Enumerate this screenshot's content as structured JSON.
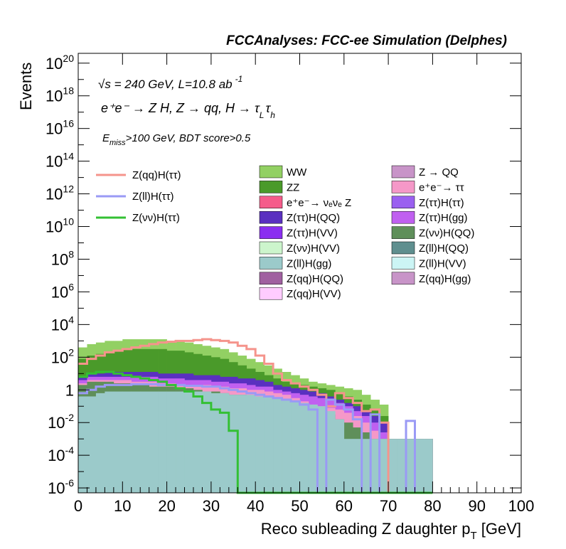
{
  "title": "FCCAnalyses: FCC-ee Simulation (Delphes)",
  "annotations": {
    "sqrt_s": "s = 240 GeV, L=10.8 ab",
    "sqrt_symbol": "√",
    "lumi_exp": "-1",
    "process_line": "e⁺e⁻ → Z H, Z → qq, H → τ",
    "process_tauL": "L",
    "process_tauH": "h",
    "cut_E": "E",
    "cut_sub": "miss",
    "cut_rest": ">100 GeV, BDT score>0.5"
  },
  "colors": {
    "frame": "#000000",
    "signal_qq": "#f5948c",
    "signal_ll": "#9a9af5",
    "signal_vv": "#33c033"
  },
  "chart_data": {
    "type": "histogram",
    "xlabel": "Reco subleading Z daughter p",
    "xlabel_sub": "T",
    "xlabel_unit": " [GeV]",
    "ylabel": "Events",
    "xlim": [
      0,
      100
    ],
    "ylim_log10": [
      -6.3,
      20.6
    ],
    "y_scale": "log",
    "x_ticks": [
      "0",
      "10",
      "20",
      "30",
      "40",
      "50",
      "60",
      "70",
      "80",
      "90",
      "100"
    ],
    "y_ticks": [
      {
        "base": "10",
        "exp": "20",
        "v": 20
      },
      {
        "base": "10",
        "exp": "18",
        "v": 18
      },
      {
        "base": "10",
        "exp": "16",
        "v": 16
      },
      {
        "base": "10",
        "exp": "14",
        "v": 14
      },
      {
        "base": "10",
        "exp": "12",
        "v": 12
      },
      {
        "base": "10",
        "exp": "10",
        "v": 10
      },
      {
        "base": "10",
        "exp": "8",
        "v": 8
      },
      {
        "base": "10",
        "exp": "6",
        "v": 6
      },
      {
        "base": "10",
        "exp": "4",
        "v": 4
      },
      {
        "base": "10",
        "exp": "2",
        "v": 2
      },
      {
        "base": "1",
        "exp": "",
        "v": 0
      },
      {
        "base": "10",
        "exp": "-2",
        "v": -2
      },
      {
        "base": "10",
        "exp": "-4",
        "v": -4
      },
      {
        "base": "10",
        "exp": "-6",
        "v": -6
      }
    ],
    "bin_width": 2,
    "stack_layers": [
      {
        "name": "Z(ll)H(gg)",
        "color": "#9bcaca",
        "log10": [
          -0.4,
          -0.4,
          -0.2,
          -0.1,
          -0.1,
          -0.1,
          -0.1,
          -0.1,
          -0.1,
          -0.1,
          -0.1,
          -0.1,
          -0.1,
          -0.1,
          -0.1,
          -0.2,
          -0.2,
          -0.3,
          -0.3,
          -0.3,
          -0.4,
          -0.4,
          -0.5,
          -0.6,
          -0.7,
          -0.8,
          -0.9,
          -1.0,
          -1.3,
          -1.8,
          -3.0,
          -3.0,
          -3.0,
          -3.0,
          -3.0,
          -3.0,
          -3.0,
          -3.0,
          -3.0,
          -3.0
        ]
      },
      {
        "name": "Z(νν)H(QQ)",
        "color": "#5f8f5a",
        "log10": [
          0.3,
          0.5,
          0.5,
          0.5,
          0.4,
          0.4,
          0.3,
          0.3,
          0.2,
          0.2,
          0.2,
          0.1,
          0.1,
          0.0,
          -0.1,
          -0.1,
          -0.2,
          -0.3,
          -0.3,
          -0.4,
          -0.5,
          -0.6,
          -0.7,
          -0.8,
          -0.9,
          -1.0,
          -1.2,
          -1.3,
          -1.5,
          -1.8,
          -2.0,
          -2.3,
          -2.6,
          -3.0,
          -3.0,
          -3.0,
          -3.0,
          -3.0,
          -3.0,
          -3.0
        ]
      },
      {
        "name": "e⁺e⁻→τ τ",
        "color": "#f598c8",
        "log10": [
          0.4,
          0.6,
          0.6,
          0.6,
          0.6,
          0.6,
          0.5,
          0.5,
          0.5,
          0.4,
          0.4,
          0.3,
          0.3,
          0.3,
          0.3,
          0.2,
          0.2,
          0.1,
          0.1,
          0.0,
          0.0,
          -0.1,
          -0.2,
          -0.3,
          -0.5,
          -0.7,
          -0.9,
          -1.0,
          -1.1,
          -1.2,
          -1.4,
          -1.6,
          -2.0,
          -2.5,
          -3.0,
          -3.0,
          -3.0,
          -3.0,
          -3.0,
          -3.0
        ]
      },
      {
        "name": "Z(ττ)H(gg)",
        "color": "#c060f0",
        "log10": [
          0.6,
          0.8,
          0.8,
          0.8,
          0.8,
          0.8,
          0.8,
          0.8,
          0.8,
          0.7,
          0.7,
          0.7,
          0.6,
          0.6,
          0.6,
          0.5,
          0.5,
          0.4,
          0.4,
          0.3,
          0.2,
          0.2,
          0.0,
          -0.1,
          -0.2,
          -0.3,
          -0.4,
          -0.5,
          -0.6,
          -0.8,
          -1.0,
          -1.3,
          -1.6,
          -2.0,
          -2.6,
          -3.0,
          -3.0,
          -3.0,
          -3.0,
          -3.0
        ]
      },
      {
        "name": "Z(ττ)H(QQ)",
        "color": "#5a30c0",
        "log10": [
          0.8,
          1.0,
          1.0,
          1.1,
          1.1,
          1.1,
          1.1,
          1.1,
          1.1,
          1.0,
          1.0,
          1.0,
          1.0,
          0.9,
          0.9,
          0.9,
          0.8,
          0.8,
          0.7,
          0.7,
          0.6,
          0.5,
          0.3,
          0.2,
          0.1,
          0.0,
          -0.1,
          -0.2,
          -0.4,
          -0.6,
          -0.8,
          -1.0,
          -1.3,
          -1.6,
          -2.0,
          -3.0,
          -3.0,
          -3.0,
          -3.0,
          -3.0
        ]
      },
      {
        "name": "ZZ",
        "color": "#4a9a2a",
        "log10": [
          1.9,
          2.1,
          2.2,
          2.3,
          2.4,
          2.5,
          2.5,
          2.5,
          2.5,
          2.5,
          2.4,
          2.4,
          2.3,
          2.2,
          2.1,
          2.0,
          1.9,
          1.7,
          1.5,
          1.3,
          1.1,
          0.9,
          0.7,
          0.5,
          0.4,
          0.3,
          0.2,
          0.1,
          0.0,
          -0.2,
          -0.4,
          -0.6,
          -0.9,
          -1.2,
          -1.6,
          -3.0,
          -3.0,
          -3.0,
          -3.0,
          -3.0
        ]
      },
      {
        "name": "WW",
        "color": "#92d063",
        "log10": [
          2.6,
          2.8,
          2.9,
          3.0,
          3.0,
          3.1,
          3.1,
          3.1,
          3.1,
          3.1,
          3.0,
          3.0,
          2.9,
          2.8,
          2.7,
          2.6,
          2.5,
          2.3,
          2.1,
          1.9,
          1.7,
          1.5,
          1.3,
          1.1,
          0.9,
          0.7,
          0.5,
          0.4,
          0.3,
          0.2,
          0.1,
          0.0,
          -0.3,
          -0.6,
          -0.9,
          -3.0,
          -3.0,
          -3.0,
          -3.0,
          -3.0
        ]
      }
    ],
    "signals": [
      {
        "name": "Z(qq)H(ττ)",
        "color": "#f5948c",
        "log10": [
          1.6,
          1.9,
          2.1,
          2.3,
          2.4,
          2.5,
          2.6,
          2.7,
          2.8,
          2.9,
          2.95,
          3.0,
          3.0,
          3.05,
          3.1,
          3.05,
          3.0,
          2.9,
          2.7,
          2.5,
          2.1,
          1.6,
          1.0,
          0.6,
          0.4,
          0.2,
          0.0,
          -0.3,
          -1.0,
          -0.2,
          -0.5,
          -0.8,
          -1.3,
          -1.2,
          -2.0,
          -6.3,
          -6.3,
          -6.3,
          -6.3,
          -6.3
        ]
      },
      {
        "name": "Z(ll)H(ττ)",
        "color": "#9a9af5",
        "log10": [
          -0.2,
          0.0,
          0.2,
          0.3,
          0.3,
          0.3,
          0.35,
          0.35,
          0.35,
          0.3,
          0.3,
          0.3,
          0.25,
          0.25,
          0.2,
          0.2,
          0.1,
          0.0,
          -0.1,
          -0.2,
          -0.3,
          -0.4,
          -0.5,
          -0.6,
          -0.7,
          -0.9,
          -1.2,
          -6.3,
          -0.6,
          -0.9,
          -1.2,
          -1.8,
          -6.3,
          -1.5,
          -6.3,
          -6.3,
          -6.3,
          -1.9,
          -6.3,
          -6.3
        ]
      },
      {
        "name": "Z(νν)H(ττ)",
        "color": "#33c033",
        "log10": [
          0.8,
          1.0,
          1.1,
          1.1,
          1.0,
          0.9,
          0.8,
          0.7,
          0.6,
          0.5,
          0.3,
          0.1,
          -0.1,
          -0.4,
          -0.8,
          -1.2,
          -1.4,
          -2.5,
          -6.3,
          -6.3,
          -6.3,
          -6.3,
          -6.3,
          -6.3,
          -6.3,
          -6.3,
          -6.3,
          -6.3,
          -6.3,
          -6.3,
          -6.3,
          -6.3,
          -6.3,
          -6.3,
          -6.3,
          -6.3,
          -6.3,
          -6.3,
          -6.3,
          -6.3
        ]
      }
    ],
    "legend_signals": [
      "Z(qq)H(ττ)",
      "Z(ll)H(ττ)",
      "Z(νν)H(ττ)"
    ],
    "legend_bkg_col1": [
      {
        "label": "WW",
        "color": "#92d063"
      },
      {
        "label": "ZZ",
        "color": "#4a9a2a"
      },
      {
        "label": "e⁺e⁻→ νₑνₑ Z",
        "color": "#f55c8a"
      },
      {
        "label": "Z(ττ)H(QQ)",
        "color": "#5a30c0"
      },
      {
        "label": "Z(ττ)H(VV)",
        "color": "#8a2ef0"
      },
      {
        "label": "Z(νν)H(VV)",
        "color": "#ccf5cc"
      },
      {
        "label": "Z(ll)H(gg)",
        "color": "#9bcaca"
      },
      {
        "label": "Z(qq)H(QQ)",
        "color": "#a060a0"
      },
      {
        "label": "Z(qq)H(VV)",
        "color": "#ffccff"
      }
    ],
    "legend_bkg_col2": [
      {
        "label": "Z → QQ",
        "color": "#c894c8"
      },
      {
        "label": "e⁺e⁻→ ττ",
        "color": "#f598c8"
      },
      {
        "label": "Z(ττ)H(ττ)",
        "color": "#9a60f0"
      },
      {
        "label": "Z(ττ)H(gg)",
        "color": "#c060f0"
      },
      {
        "label": "Z(νν)H(QQ)",
        "color": "#5f8f5a"
      },
      {
        "label": "Z(ll)H(QQ)",
        "color": "#5f8f8f"
      },
      {
        "label": "Z(ll)H(VV)",
        "color": "#ccf5f5"
      },
      {
        "label": "Z(qq)H(gg)",
        "color": "#c894c8"
      }
    ]
  }
}
